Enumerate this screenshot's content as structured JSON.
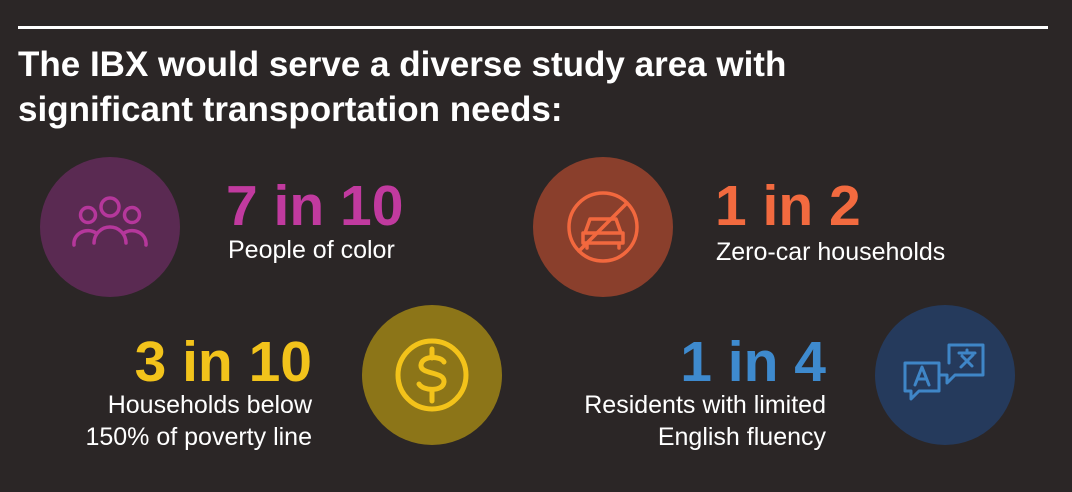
{
  "header": {
    "title": "The IBX would serve a diverse study area with significant transportation needs:"
  },
  "stats": [
    {
      "figure": "7 in 10",
      "label": "People of color"
    },
    {
      "figure": "1 in 2",
      "label": "Zero-car households"
    },
    {
      "figure": "3 in 10",
      "label": "Households below 150% of poverty line"
    },
    {
      "figure": "1 in 4",
      "label": "Residents with limited English fluency"
    }
  ]
}
